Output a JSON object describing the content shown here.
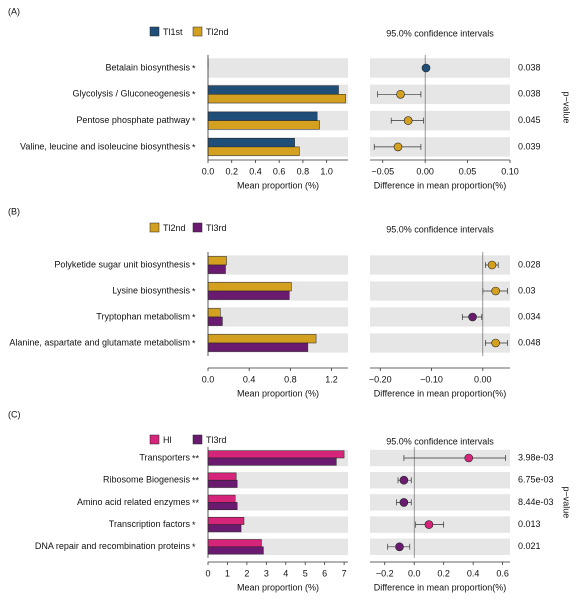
{
  "chart_data": [
    {
      "type": "bar",
      "panel_label": "(A)",
      "xlabel": "Mean proportion (%)",
      "categories": [
        "Betalain biosynthesis",
        "Glycolysis / Gluconeogenesis",
        "Pentose phosphate pathway",
        "Valine, leucine and isoleucine biosynthesis"
      ],
      "significance": [
        "*",
        "*",
        "*",
        "*"
      ],
      "series": [
        {
          "name": "Tl1st",
          "color": "#1f4e79",
          "values": [
            0.001,
            1.1,
            0.92,
            0.73
          ]
        },
        {
          "name": "Tl2nd",
          "color": "#d4a020",
          "values": [
            0.0,
            1.16,
            0.94,
            0.77
          ]
        }
      ],
      "xlim": [
        0,
        1.18
      ],
      "xticks": [
        {
          "value": 0,
          "label": "0.0"
        },
        0.2,
        0.4,
        0.6,
        0.8,
        {
          "value": 1,
          "label": "1.0"
        }
      ]
    },
    {
      "type": "errorbar",
      "title": "95.0% confidence intervals",
      "xlabel": "Difference in mean proportion(%)",
      "right_label": "p−value",
      "values": [
        0.001,
        -0.029,
        -0.02,
        -0.032
      ],
      "ci_low": [
        0.0,
        -0.056,
        -0.04,
        -0.06
      ],
      "ci_high": [
        0.002,
        -0.005,
        -0.002,
        -0.005
      ],
      "point_colors": [
        "#1f4e79",
        "#d4a020",
        "#d4a020",
        "#d4a020"
      ],
      "p_values": [
        "0.038",
        "0.038",
        "0.045",
        "0.039"
      ],
      "xlim": [
        -0.065,
        0.1
      ],
      "xticks": [
        {
          "value": -0.05,
          "label": "−0.05"
        },
        {
          "value": 0,
          "label": "0.00"
        },
        0.05,
        {
          "value": 0.1,
          "label": "0.10"
        }
      ]
    },
    {
      "type": "bar",
      "panel_label": "(B)",
      "xlabel": "Mean proportion (%)",
      "categories": [
        "Polyketide sugar unit biosynthesis",
        "Lysine biosynthesis",
        "Tryptophan metabolism",
        "Alanine, aspartate and glutamate metabolism"
      ],
      "significance": [
        "*",
        "*",
        "*",
        "*"
      ],
      "series": [
        {
          "name": "Tl2nd",
          "color": "#d4a020",
          "values": [
            0.18,
            0.81,
            0.12,
            1.05
          ]
        },
        {
          "name": "Tl3rd",
          "color": "#6a1b70",
          "values": [
            0.17,
            0.79,
            0.14,
            0.97
          ]
        }
      ],
      "xlim": [
        0,
        1.36
      ],
      "xticks": [
        {
          "value": 0,
          "label": "0.0"
        },
        0.4,
        0.8,
        1.2
      ]
    },
    {
      "type": "errorbar",
      "title": "95.0% confidence intervals",
      "xlabel": "Difference in mean proportion(%)",
      "values": [
        0.018,
        0.025,
        -0.02,
        0.025
      ],
      "ci_low": [
        0.005,
        0.0,
        -0.04,
        0.005
      ],
      "ci_high": [
        0.03,
        0.048,
        -0.002,
        0.048
      ],
      "point_colors": [
        "#d4a020",
        "#d4a020",
        "#6a1b70",
        "#d4a020"
      ],
      "p_values": [
        "0.028",
        "0.03",
        "0.034",
        "0.048"
      ],
      "xlim": [
        -0.22,
        0.053
      ],
      "xticks": [
        {
          "value": -0.2,
          "label": "−0.20"
        },
        {
          "value": -0.1,
          "label": "−0.10"
        },
        {
          "value": 0,
          "label": "0.00"
        }
      ]
    },
    {
      "type": "bar",
      "panel_label": "(C)",
      "xlabel": "Mean proportion (%)",
      "categories": [
        "Transporters",
        "Ribosome Biogenesis",
        "Amino acid related enzymes",
        "Transcription factors",
        "DNA repair and recombination proteins"
      ],
      "significance": [
        "**",
        "**",
        "**",
        "*",
        "*"
      ],
      "series": [
        {
          "name": "Hl",
          "color": "#d6247a",
          "values": [
            7.0,
            1.45,
            1.4,
            1.85,
            2.75
          ]
        },
        {
          "name": "Tl3rd",
          "color": "#6a1b70",
          "values": [
            6.6,
            1.5,
            1.5,
            1.7,
            2.85
          ]
        }
      ],
      "xlim": [
        0,
        7.2
      ],
      "xticks": [
        0,
        1,
        2,
        3,
        4,
        5,
        6,
        7
      ]
    },
    {
      "type": "errorbar",
      "title": "95.0% confidence intervals",
      "xlabel": "Difference in mean proportion(%)",
      "right_label": "p−value",
      "values": [
        0.37,
        -0.07,
        -0.07,
        0.1,
        -0.1
      ],
      "ci_low": [
        -0.07,
        -0.11,
        -0.12,
        0.01,
        -0.18
      ],
      "ci_high": [
        0.62,
        -0.02,
        -0.02,
        0.2,
        -0.03
      ],
      "point_colors": [
        "#d6247a",
        "#6a1b70",
        "#6a1b70",
        "#d6247a",
        "#6a1b70"
      ],
      "p_values": [
        "3.98e-03",
        "6.75e-03",
        "8.44e-03",
        "0.013",
        "0.021"
      ],
      "xlim": [
        -0.3,
        0.65
      ],
      "xticks": [
        {
          "value": -0.2,
          "label": "−0.2"
        },
        {
          "value": 0,
          "label": "0.0"
        },
        0.2,
        0.4,
        0.6
      ]
    }
  ]
}
